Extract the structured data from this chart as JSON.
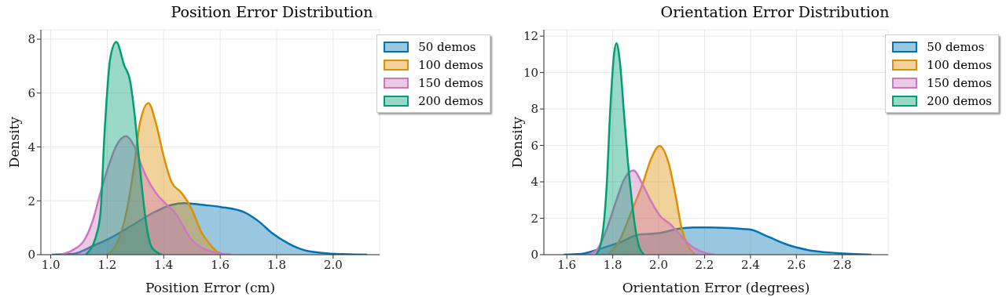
{
  "chart_data": [
    {
      "type": "area",
      "title": "Position Error Distribution",
      "xlabel": "Position Error (cm)",
      "ylabel": "Density",
      "xlim": [
        0.965,
        2.165
      ],
      "xticks": [
        {
          "value": 1,
          "label": "1.0"
        },
        {
          "value": 1.2,
          "label": "1.2"
        },
        {
          "value": 1.4,
          "label": "1.4"
        },
        {
          "value": 1.6,
          "label": "1.6"
        },
        {
          "value": 1.8,
          "label": "1.8"
        },
        {
          "value": 2,
          "label": "2.0"
        }
      ],
      "ylim": [
        0,
        8.35
      ],
      "yticks": [
        0,
        2,
        4,
        6,
        8
      ],
      "grid": true,
      "legend": "top right",
      "series": [
        {
          "name": "50 demos",
          "color": "#0173b2",
          "x": [
            1.005,
            1.078,
            1.148,
            1.218,
            1.288,
            1.358,
            1.428,
            1.47,
            1.547,
            1.603,
            1.687,
            1.736,
            1.784,
            1.841,
            1.897,
            1.967,
            2.036,
            2.12
          ],
          "values": [
            0,
            0.03,
            0.32,
            0.66,
            1.09,
            1.53,
            1.85,
            1.91,
            1.84,
            1.77,
            1.57,
            1.24,
            0.8,
            0.42,
            0.17,
            0.06,
            0.02,
            0
          ]
        },
        {
          "name": "100 demos",
          "color": "#de8f05",
          "x": [
            1.197,
            1.232,
            1.267,
            1.295,
            1.316,
            1.346,
            1.372,
            1.4,
            1.428,
            1.463,
            1.498,
            1.533,
            1.565,
            1.59,
            1.62
          ],
          "values": [
            0,
            0.37,
            1.53,
            3.27,
            4.9,
            5.63,
            4.9,
            3.65,
            2.69,
            2.3,
            1.72,
            0.85,
            0.37,
            0.1,
            0
          ]
        },
        {
          "name": "150 demos",
          "color": "#cc78bc",
          "x": [
            1.036,
            1.078,
            1.12,
            1.148,
            1.176,
            1.204,
            1.232,
            1.267,
            1.295,
            1.323,
            1.344,
            1.372,
            1.414,
            1.442,
            1.47,
            1.498,
            1.533,
            1.6,
            1.64
          ],
          "values": [
            0,
            0.17,
            0.56,
            1.24,
            2.3,
            3.27,
            4.04,
            4.4,
            4.04,
            3.27,
            2.78,
            2.3,
            1.82,
            1.53,
            1.04,
            0.56,
            0.27,
            0.05,
            0
          ]
        },
        {
          "name": "200 demos",
          "color": "#029e73",
          "x": [
            1.124,
            1.162,
            1.176,
            1.19,
            1.211,
            1.232,
            1.26,
            1.281,
            1.295,
            1.309,
            1.323,
            1.337,
            1.358,
            1.393
          ],
          "values": [
            0,
            0.75,
            1.53,
            4.43,
            7.32,
            7.9,
            7.03,
            6.45,
            5.39,
            3.94,
            2.49,
            1.23,
            0.27,
            0
          ]
        }
      ]
    },
    {
      "type": "area",
      "title": "Orientation Error Distribution",
      "xlabel": "Orientation Error (degrees)",
      "ylabel": "Density",
      "xlim": [
        1.5,
        3.0
      ],
      "xticks": [
        {
          "value": 1.6,
          "label": "1.6"
        },
        {
          "value": 1.8,
          "label": "1.8"
        },
        {
          "value": 2,
          "label": "2.0"
        },
        {
          "value": 2.2,
          "label": "2.2"
        },
        {
          "value": 2.4,
          "label": "2.4"
        },
        {
          "value": 2.6,
          "label": "2.6"
        },
        {
          "value": 2.8,
          "label": "2.8"
        }
      ],
      "ylim": [
        0,
        12.35
      ],
      "yticks": [
        0,
        2,
        4,
        6,
        8,
        10,
        12
      ],
      "grid": true,
      "legend": "top right",
      "series": [
        {
          "name": "50 demos",
          "color": "#0173b2",
          "x": [
            1.587,
            1.663,
            1.747,
            1.831,
            1.916,
            2.0,
            2.084,
            2.151,
            2.227,
            2.395,
            2.48,
            2.563,
            2.648,
            2.774,
            2.926
          ],
          "values": [
            0,
            0.04,
            0.33,
            0.68,
            1.11,
            1.18,
            1.42,
            1.5,
            1.5,
            1.39,
            0.97,
            0.54,
            0.26,
            0.09,
            0
          ]
        },
        {
          "name": "100 demos",
          "color": "#de8f05",
          "x": [
            1.781,
            1.831,
            1.882,
            1.932,
            1.966,
            2.004,
            2.042,
            2.076,
            2.101,
            2.126,
            2.16
          ],
          "values": [
            0,
            0.82,
            2.39,
            3.95,
            5.23,
            5.97,
            5.09,
            3.1,
            1.39,
            0.54,
            0
          ]
        },
        {
          "name": "150 demos",
          "color": "#cc78bc",
          "x": [
            1.688,
            1.73,
            1.773,
            1.815,
            1.848,
            1.89,
            1.932,
            1.966,
            2.008,
            2.05,
            2.092,
            2.135,
            2.185,
            2.244
          ],
          "values": [
            0,
            0.26,
            1.39,
            2.95,
            4.09,
            4.63,
            3.8,
            2.95,
            2.1,
            1.68,
            1.11,
            0.54,
            0.18,
            0
          ]
        },
        {
          "name": "200 demos",
          "color": "#029e73",
          "x": [
            1.726,
            1.747,
            1.773,
            1.789,
            1.806,
            1.816,
            1.831,
            1.848,
            1.865,
            1.882,
            1.899,
            1.916,
            1.937
          ],
          "values": [
            0,
            0.54,
            3.66,
            7.93,
            11.05,
            11.62,
            10.6,
            7.93,
            5.23,
            3.1,
            1.39,
            0.4,
            0
          ]
        }
      ]
    }
  ]
}
